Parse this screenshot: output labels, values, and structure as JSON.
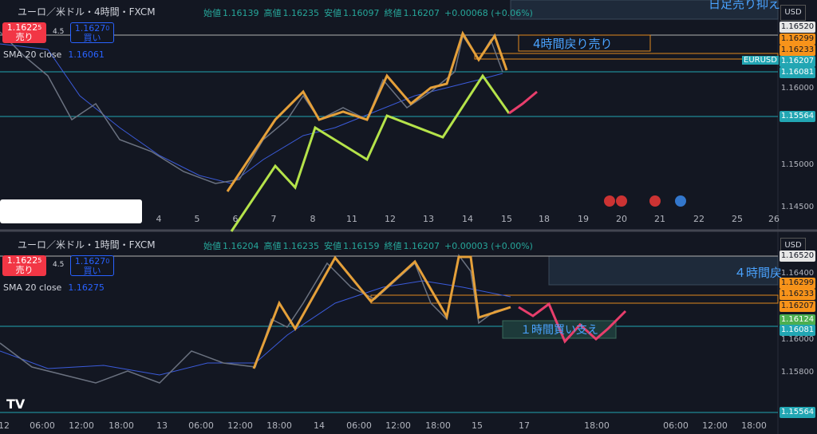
{
  "panels": [
    {
      "symbol": "ユーロ／米ドル・4時間・FXCM",
      "ohlc": [
        [
          "始値",
          "1.16139"
        ],
        [
          "高値",
          "1.16235"
        ],
        [
          "安値",
          "1.16097"
        ],
        [
          "終値",
          "1.16207"
        ]
      ],
      "change": "+0.00068 (+0.06%)",
      "sell": {
        "price": "1.1622",
        "small": "5",
        "label": "売り"
      },
      "spread": "4.5",
      "buy": {
        "price": "1.1627",
        "small": "0",
        "label": "買い"
      },
      "indicator": {
        "name": "SMA 20 close",
        "value": "1.16061"
      },
      "currency": "USD",
      "symbol_tag": "EURUSD",
      "price_axis": [
        "1.16520",
        "1.16299",
        "1.16233",
        "1.16207",
        "1.16081",
        "1.16000",
        "1.15564",
        "1.15000",
        "1.14500"
      ],
      "time_axis": [
        "4",
        "5",
        "6",
        "7",
        "8",
        "11",
        "12",
        "13",
        "14",
        "15",
        "18",
        "19",
        "20",
        "21",
        "22",
        "25",
        "26"
      ],
      "annotations": [
        "4時間戻り売り",
        "日足売り抑え"
      ]
    },
    {
      "symbol": "ユーロ／米ドル・1時間・FXCM",
      "ohlc": [
        [
          "始値",
          "1.16204"
        ],
        [
          "高値",
          "1.16235"
        ],
        [
          "安値",
          "1.16159"
        ],
        [
          "終値",
          "1.16207"
        ]
      ],
      "change": "+0.00003 (+0.00%)",
      "sell": {
        "price": "1.1622",
        "small": "5",
        "label": "売り"
      },
      "spread": "4.5",
      "buy": {
        "price": "1.1627",
        "small": "0",
        "label": "買い"
      },
      "indicator": {
        "name": "SMA 20 close",
        "value": "1.16275"
      },
      "currency": "USD",
      "price_axis": [
        "1.16520",
        "1.16400",
        "1.16299",
        "1.16233",
        "1.16207",
        "1.16124",
        "1.16081",
        "1.16000",
        "1.15800",
        "1.15564"
      ],
      "time_axis": [
        "12",
        "06:00",
        "12:00",
        "18:00",
        "13",
        "06:00",
        "12:00",
        "18:00",
        "14",
        "06:00",
        "12:00",
        "18:00",
        "15",
        "17",
        "18:00",
        "06:00",
        "12:00",
        "18:00"
      ],
      "annotations": [
        "４時間戻",
        "１時間買い支え"
      ]
    }
  ]
}
